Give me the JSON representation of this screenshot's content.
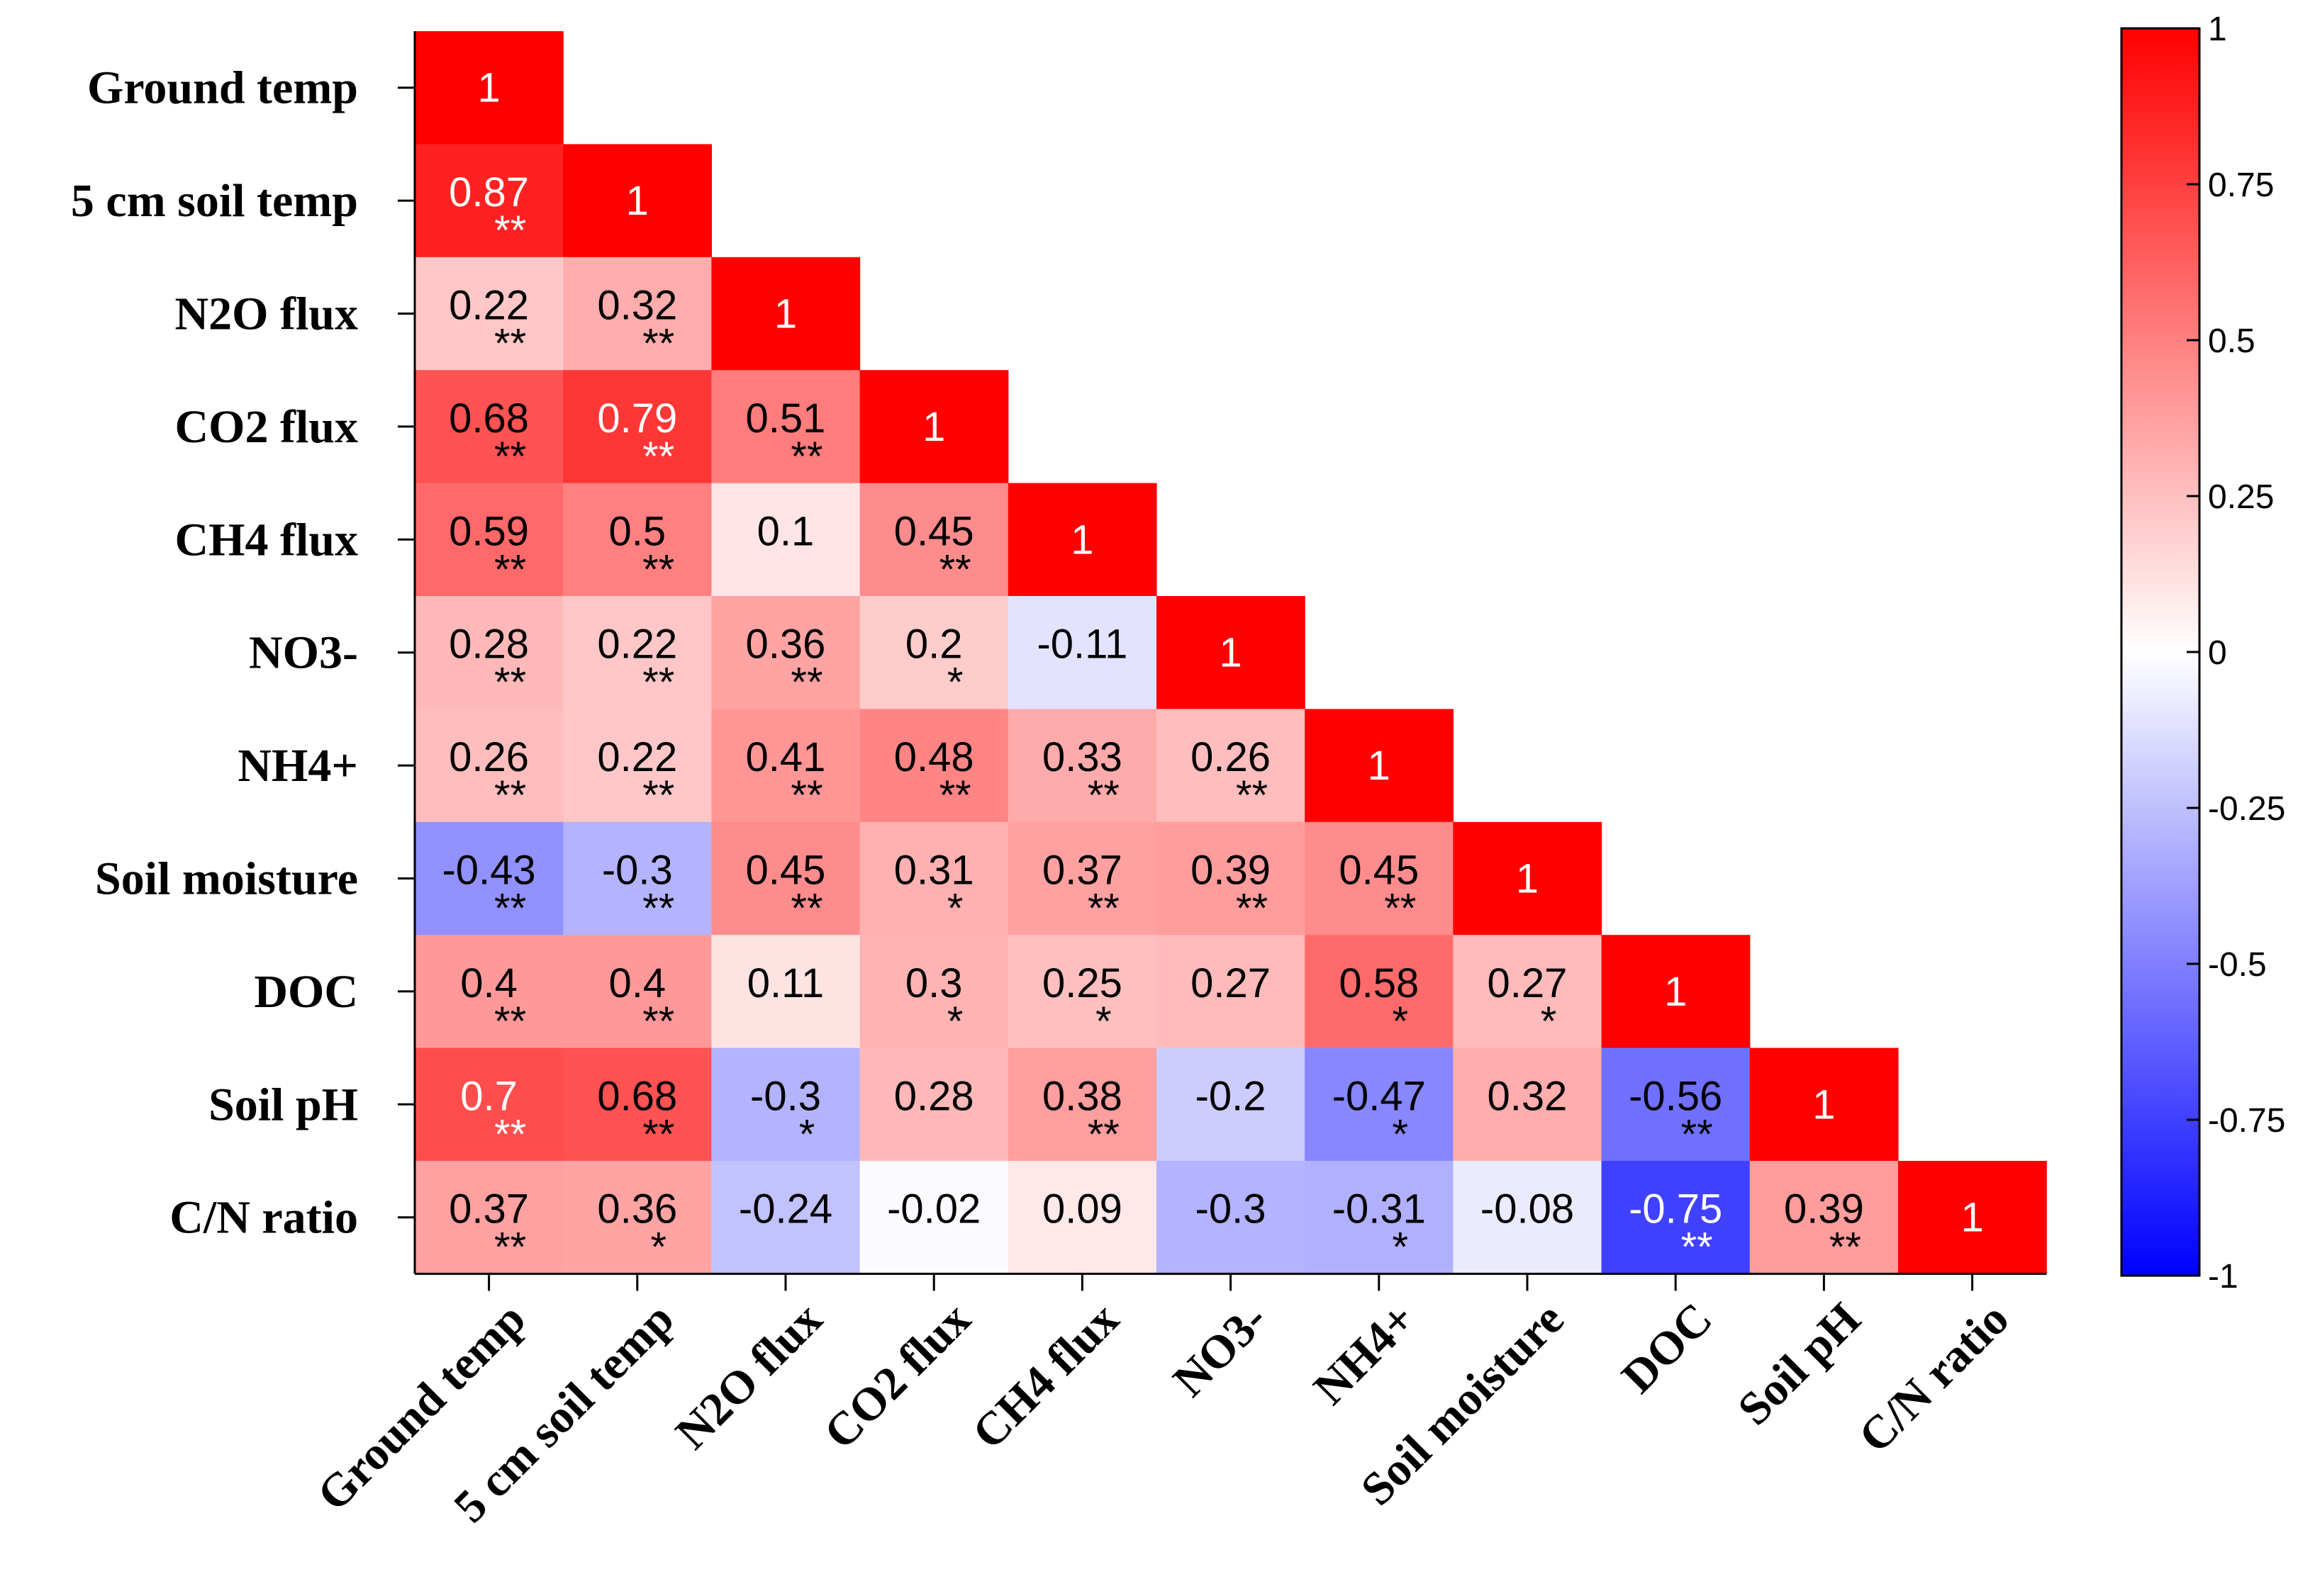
{
  "chart_data": {
    "type": "heatmap",
    "variables": [
      "Ground temp",
      "5 cm soil temp",
      "N2O flux",
      "CO2 flux",
      "CH4 flux",
      "NO3-",
      "NH4+",
      "Soil moisture",
      "DOC",
      "Soil pH",
      "C/N ratio"
    ],
    "matrix_lower": [
      [
        1
      ],
      [
        0.87,
        1
      ],
      [
        0.22,
        0.32,
        1
      ],
      [
        0.68,
        0.79,
        0.51,
        1
      ],
      [
        0.59,
        0.5,
        0.1,
        0.45,
        1
      ],
      [
        0.28,
        0.22,
        0.36,
        0.2,
        -0.11,
        1
      ],
      [
        0.26,
        0.22,
        0.41,
        0.48,
        0.33,
        0.26,
        1
      ],
      [
        -0.43,
        -0.3,
        0.45,
        0.31,
        0.37,
        0.39,
        0.45,
        1
      ],
      [
        0.4,
        0.4,
        0.11,
        0.3,
        0.25,
        0.27,
        0.58,
        0.27,
        1
      ],
      [
        0.7,
        0.68,
        -0.3,
        0.28,
        0.38,
        -0.2,
        -0.47,
        0.32,
        -0.56,
        1
      ],
      [
        0.37,
        0.36,
        -0.24,
        -0.02,
        0.09,
        -0.3,
        -0.31,
        -0.08,
        -0.75,
        0.39,
        1
      ]
    ],
    "significance_lower": [
      [
        ""
      ],
      [
        "**",
        ""
      ],
      [
        "**",
        "**",
        ""
      ],
      [
        "**",
        "**",
        "**",
        ""
      ],
      [
        "**",
        "**",
        "",
        "**",
        ""
      ],
      [
        "**",
        "**",
        "**",
        "*",
        "",
        ""
      ],
      [
        "**",
        "**",
        "**",
        "**",
        "**",
        "**",
        ""
      ],
      [
        "**",
        "**",
        "**",
        "*",
        "**",
        "**",
        "**",
        ""
      ],
      [
        "**",
        "**",
        "",
        "*",
        "*",
        "",
        "*",
        "*",
        ""
      ],
      [
        "**",
        "**",
        "*",
        "",
        "**",
        "",
        "*",
        "",
        "**",
        ""
      ],
      [
        "**",
        "*",
        "",
        "",
        "",
        "",
        "*",
        "",
        "**",
        "**",
        ""
      ]
    ],
    "colorbar": {
      "range": [
        -1,
        1
      ],
      "ticks": [
        "1",
        "0.75",
        "0.5",
        "0.25",
        "0",
        "-0.25",
        "-0.5",
        "-0.75",
        "-1"
      ],
      "low_color": "#0000ff",
      "mid_color": "#ffffff",
      "high_color": "#ff0000"
    },
    "title": "",
    "xlabel": "",
    "ylabel": ""
  }
}
